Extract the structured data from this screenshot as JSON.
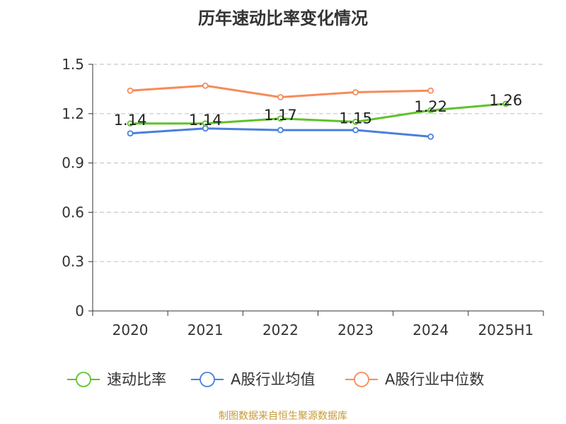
{
  "chart_data": {
    "type": "line",
    "title": "历年速动比率变化情况",
    "categories": [
      "2020",
      "2021",
      "2022",
      "2023",
      "2024",
      "2025H1"
    ],
    "ylim": [
      0,
      1.5
    ],
    "yticks": [
      "0",
      "0.3",
      "0.6",
      "0.9",
      "1.2",
      "1.5"
    ],
    "grid": true,
    "legend_position": "bottom",
    "series": [
      {
        "name": "速动比率",
        "color": "#5ec22a",
        "values": [
          1.14,
          1.14,
          1.17,
          1.15,
          1.22,
          1.26
        ],
        "labels": [
          "1.14",
          "1.14",
          "1.17",
          "1.15",
          "1.22",
          "1.26"
        ]
      },
      {
        "name": "A股行业均值",
        "color": "#4a7fdc",
        "values": [
          1.08,
          1.11,
          1.1,
          1.1,
          1.06,
          null
        ]
      },
      {
        "name": "A股行业中位数",
        "color": "#f58c5a",
        "values": [
          1.34,
          1.37,
          1.3,
          1.33,
          1.34,
          null
        ]
      }
    ]
  },
  "source_text": "制图数据来自恒生聚源数据库"
}
